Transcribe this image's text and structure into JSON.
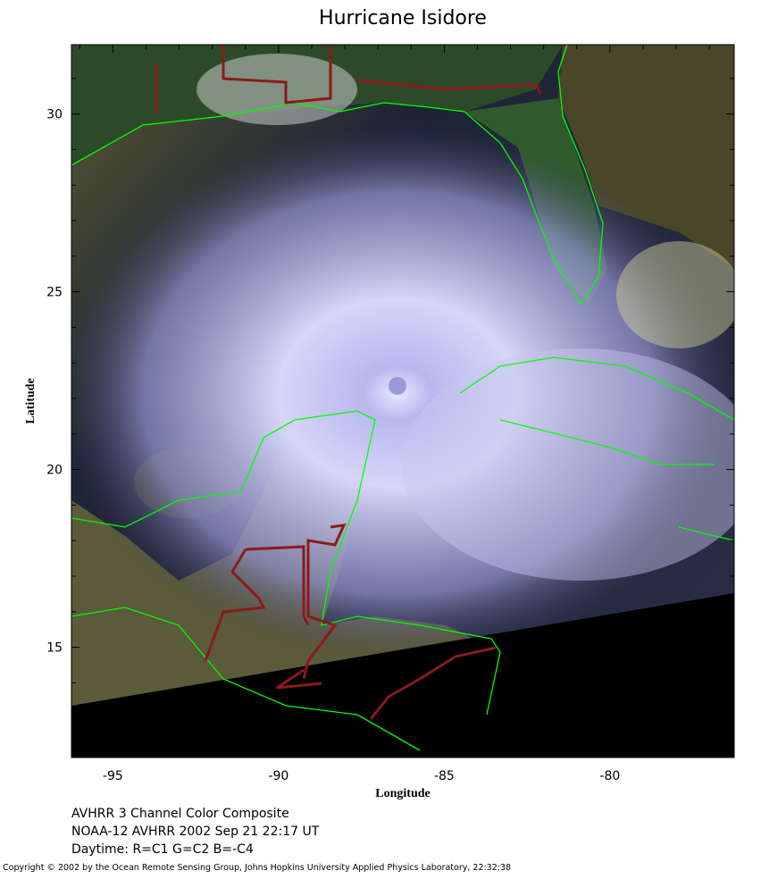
{
  "chart_data": {
    "type": "map",
    "title": "Hurricane Isidore",
    "xlabel": "Longitude",
    "ylabel": "Latitude",
    "xlim": [
      -96.25,
      -76.25
    ],
    "ylim": [
      11.9,
      31.95
    ],
    "xticks": [
      -95,
      -90,
      -85,
      -80
    ],
    "yticks": [
      15,
      20,
      25,
      30
    ],
    "xminorticks": [
      -96,
      -94,
      -93,
      -92,
      -91,
      -89,
      -88,
      -87,
      -86,
      -84,
      -83,
      -82,
      -81,
      -79,
      -78,
      -77
    ],
    "yminorticks": [
      12,
      13,
      14,
      16,
      17,
      18,
      19,
      21,
      22,
      23,
      24,
      26,
      27,
      28,
      29,
      31
    ],
    "caption": [
      "AVHRR 3 Channel Color Composite",
      "NOAA-12 AVHRR 2002 Sep 21 22:17 UT",
      "Daytime: R=C1 G=C2 B=-C4"
    ],
    "copyright": "Copyright © 2002 by the Ocean Remote Sensing Group, Johns Hopkins University Applied Physics Laboratory, 22:32:38"
  }
}
